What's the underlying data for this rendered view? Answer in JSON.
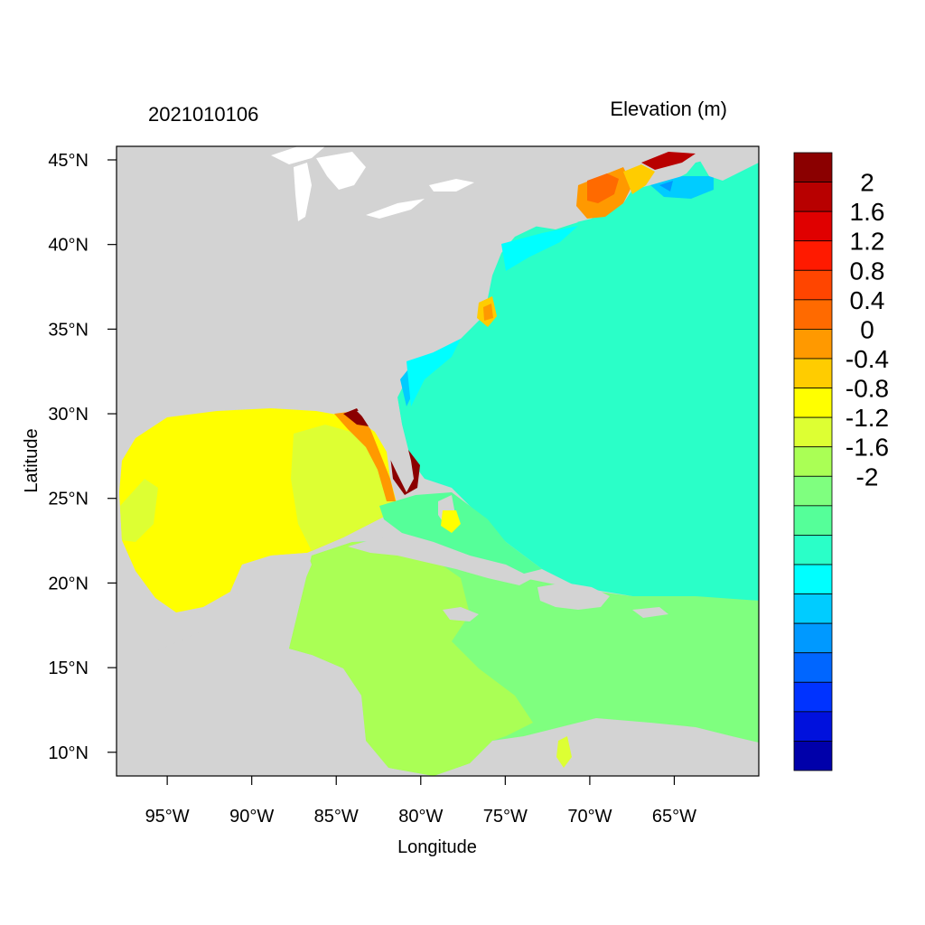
{
  "title_left": "2021010106",
  "title_right": "Elevation (m)",
  "xlabel": "Longitude",
  "ylabel": "Latitude",
  "x_ticks": [
    {
      "lon": -95,
      "label": "95°W"
    },
    {
      "lon": -90,
      "label": "90°W"
    },
    {
      "lon": -85,
      "label": "85°W"
    },
    {
      "lon": -80,
      "label": "80°W"
    },
    {
      "lon": -75,
      "label": "75°W"
    },
    {
      "lon": -70,
      "label": "70°W"
    },
    {
      "lon": -65,
      "label": "65°W"
    }
  ],
  "y_ticks": [
    {
      "lat": 45,
      "label": "45°N"
    },
    {
      "lat": 40,
      "label": "40°N"
    },
    {
      "lat": 35,
      "label": "35°N"
    },
    {
      "lat": 30,
      "label": "30°N"
    },
    {
      "lat": 25,
      "label": "25°N"
    },
    {
      "lat": 20,
      "label": "20°N"
    },
    {
      "lat": 15,
      "label": "15°N"
    },
    {
      "lat": 10,
      "label": "10°N"
    }
  ],
  "extent": {
    "lon_min": -98,
    "lon_max": -60,
    "lat_min": 8.6,
    "lat_max": 45.8
  },
  "colorbar": {
    "colors_top_to_bottom": [
      "#8B0000",
      "#B80000",
      "#E00000",
      "#FF1A00",
      "#FF4500",
      "#FF6A00",
      "#FF9900",
      "#FFCC00",
      "#FFFF00",
      "#DDFF33",
      "#AAFF55",
      "#7FFF7F",
      "#55FF99",
      "#2AFFC8",
      "#00FFFF",
      "#00CCFF",
      "#0099FF",
      "#0066FF",
      "#0033FF",
      "#0011DD",
      "#0000AA"
    ],
    "tick_labels": [
      "2",
      "1.6",
      "1.2",
      "0.8",
      "0.4",
      "0",
      "-0.4",
      "-0.8",
      "-1.2",
      "-1.6",
      "-2"
    ]
  },
  "colors": {
    "land": "#D3D3D3",
    "open_ocean": "#2AFFC8",
    "caribbean": "#7FFF7F",
    "west_caribbean": "#AAFF55",
    "gulf": "#FFFF00",
    "east_gulf": "#DDFF33"
  }
}
